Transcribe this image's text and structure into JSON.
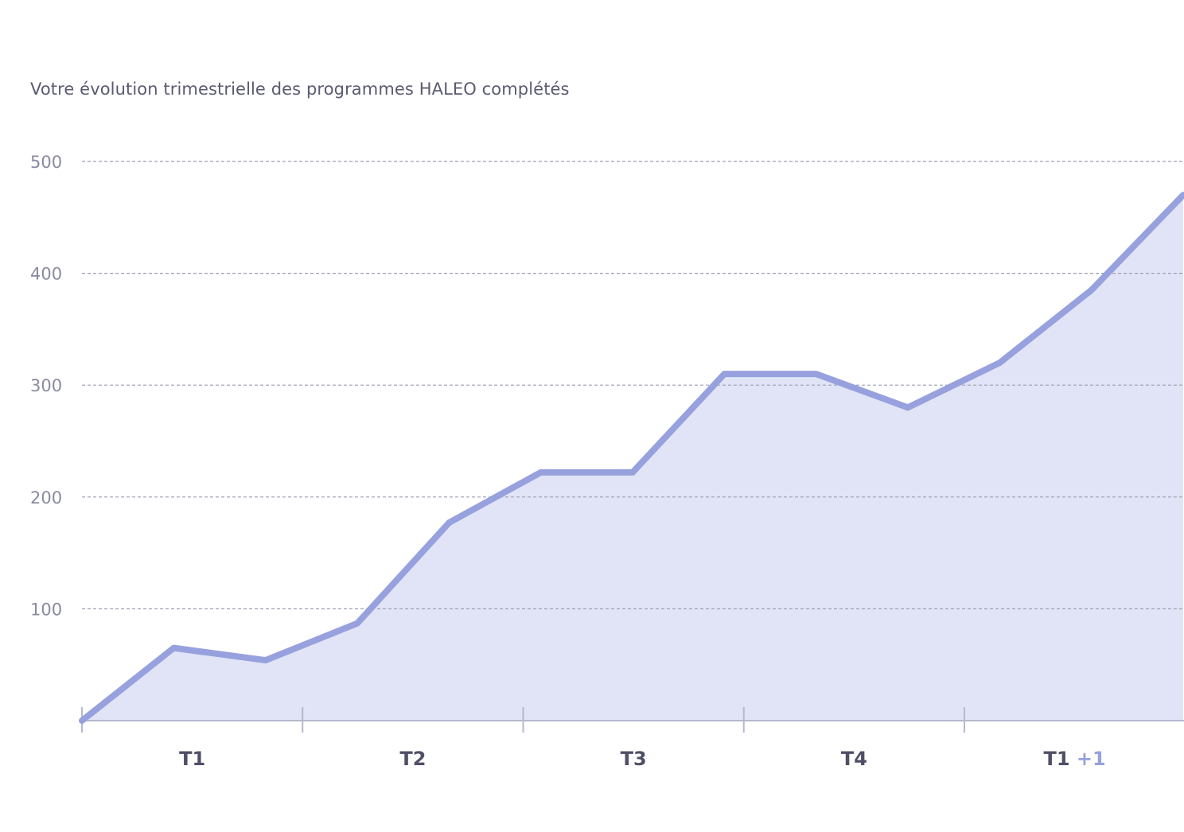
{
  "title": "Votre évolution trimestrielle des programmes HALEO complétés",
  "colors": {
    "line": "#97a1de",
    "area": "#e0e4f6",
    "grid": "#9e9eb2",
    "axis": "#b6b8cc",
    "text": "#5a5a72"
  },
  "chart_data": {
    "type": "area",
    "title": "Votre évolution trimestrielle des programmes HALEO complétés",
    "xlabel": "",
    "ylabel": "",
    "ylim": [
      0,
      500
    ],
    "yticks": [
      "100",
      "200",
      "300",
      "400",
      "500"
    ],
    "quarters": [
      {
        "label": "T1",
        "suffix": ""
      },
      {
        "label": "T2",
        "suffix": ""
      },
      {
        "label": "T3",
        "suffix": ""
      },
      {
        "label": "T4",
        "suffix": ""
      },
      {
        "label": "T1",
        "suffix": "+1"
      }
    ],
    "grid": true,
    "series": [
      {
        "values": [
          0,
          65,
          54,
          87,
          177,
          222,
          222,
          310,
          310,
          280,
          320,
          385,
          470
        ]
      }
    ]
  }
}
